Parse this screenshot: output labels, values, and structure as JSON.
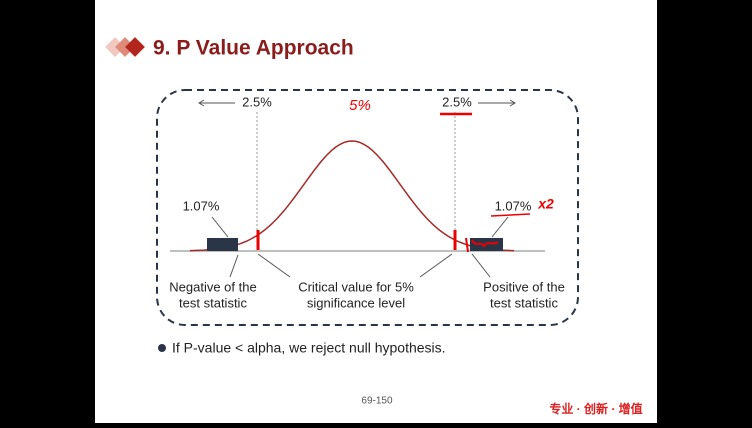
{
  "header": {
    "title": "9. P Value Approach"
  },
  "diagram": {
    "left_tail": "2.5%",
    "right_tail": "2.5%",
    "left_p": "1.07%",
    "right_p": "1.07%",
    "note_center": "5%",
    "note_right": "x2",
    "labels": [
      [
        "Negative of the",
        "test statistic"
      ],
      [
        "Critical value for 5%",
        "significance level"
      ],
      [
        "Positive of the",
        "test statistic"
      ]
    ]
  },
  "bullet": "If P-value < alpha, we reject null hypothesis.",
  "footer": {
    "page": "69-150",
    "logo": "专业 · 创新 · 增值"
  }
}
